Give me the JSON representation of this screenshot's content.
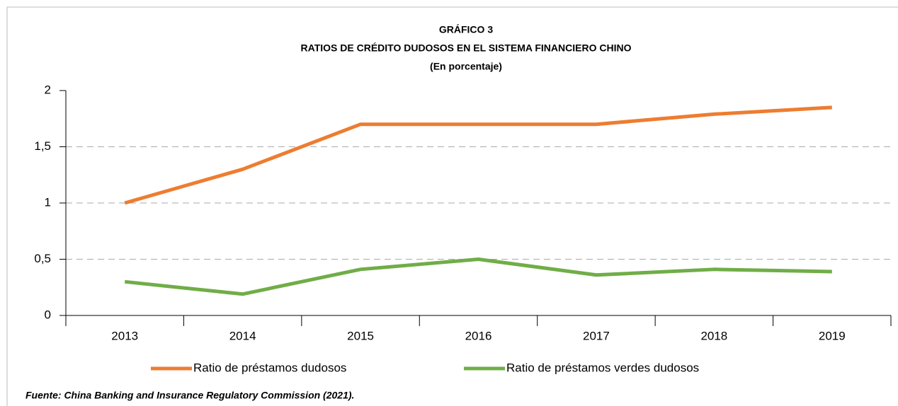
{
  "chart_data": {
    "type": "line",
    "title": "GRÁFICO 3",
    "subtitle": "RATIOS DE CRÉDITO DUDOSOS EN EL SISTEMA FINANCIERO CHINO",
    "unit_note": "(En porcentaje)",
    "categories": [
      "2013",
      "2014",
      "2015",
      "2016",
      "2017",
      "2018",
      "2019"
    ],
    "series": [
      {
        "name": "Ratio de préstamos dudosos",
        "color": "#ed7d31",
        "values": [
          1.0,
          1.3,
          1.7,
          1.7,
          1.7,
          1.79,
          1.85
        ]
      },
      {
        "name": "Ratio de préstamos verdes dudosos",
        "color": "#70ad47",
        "values": [
          0.3,
          0.19,
          0.41,
          0.5,
          0.36,
          0.41,
          0.39
        ]
      }
    ],
    "ylim": [
      0,
      2
    ],
    "yticks": [
      0,
      {
        "value": 0.5,
        "label": "0,5"
      },
      1,
      {
        "value": 1.5,
        "label": "1,5"
      },
      2
    ],
    "grid": true,
    "legend": "bottom",
    "source": "Fuente: China Banking and Insurance Regulatory Commission (2021)."
  }
}
